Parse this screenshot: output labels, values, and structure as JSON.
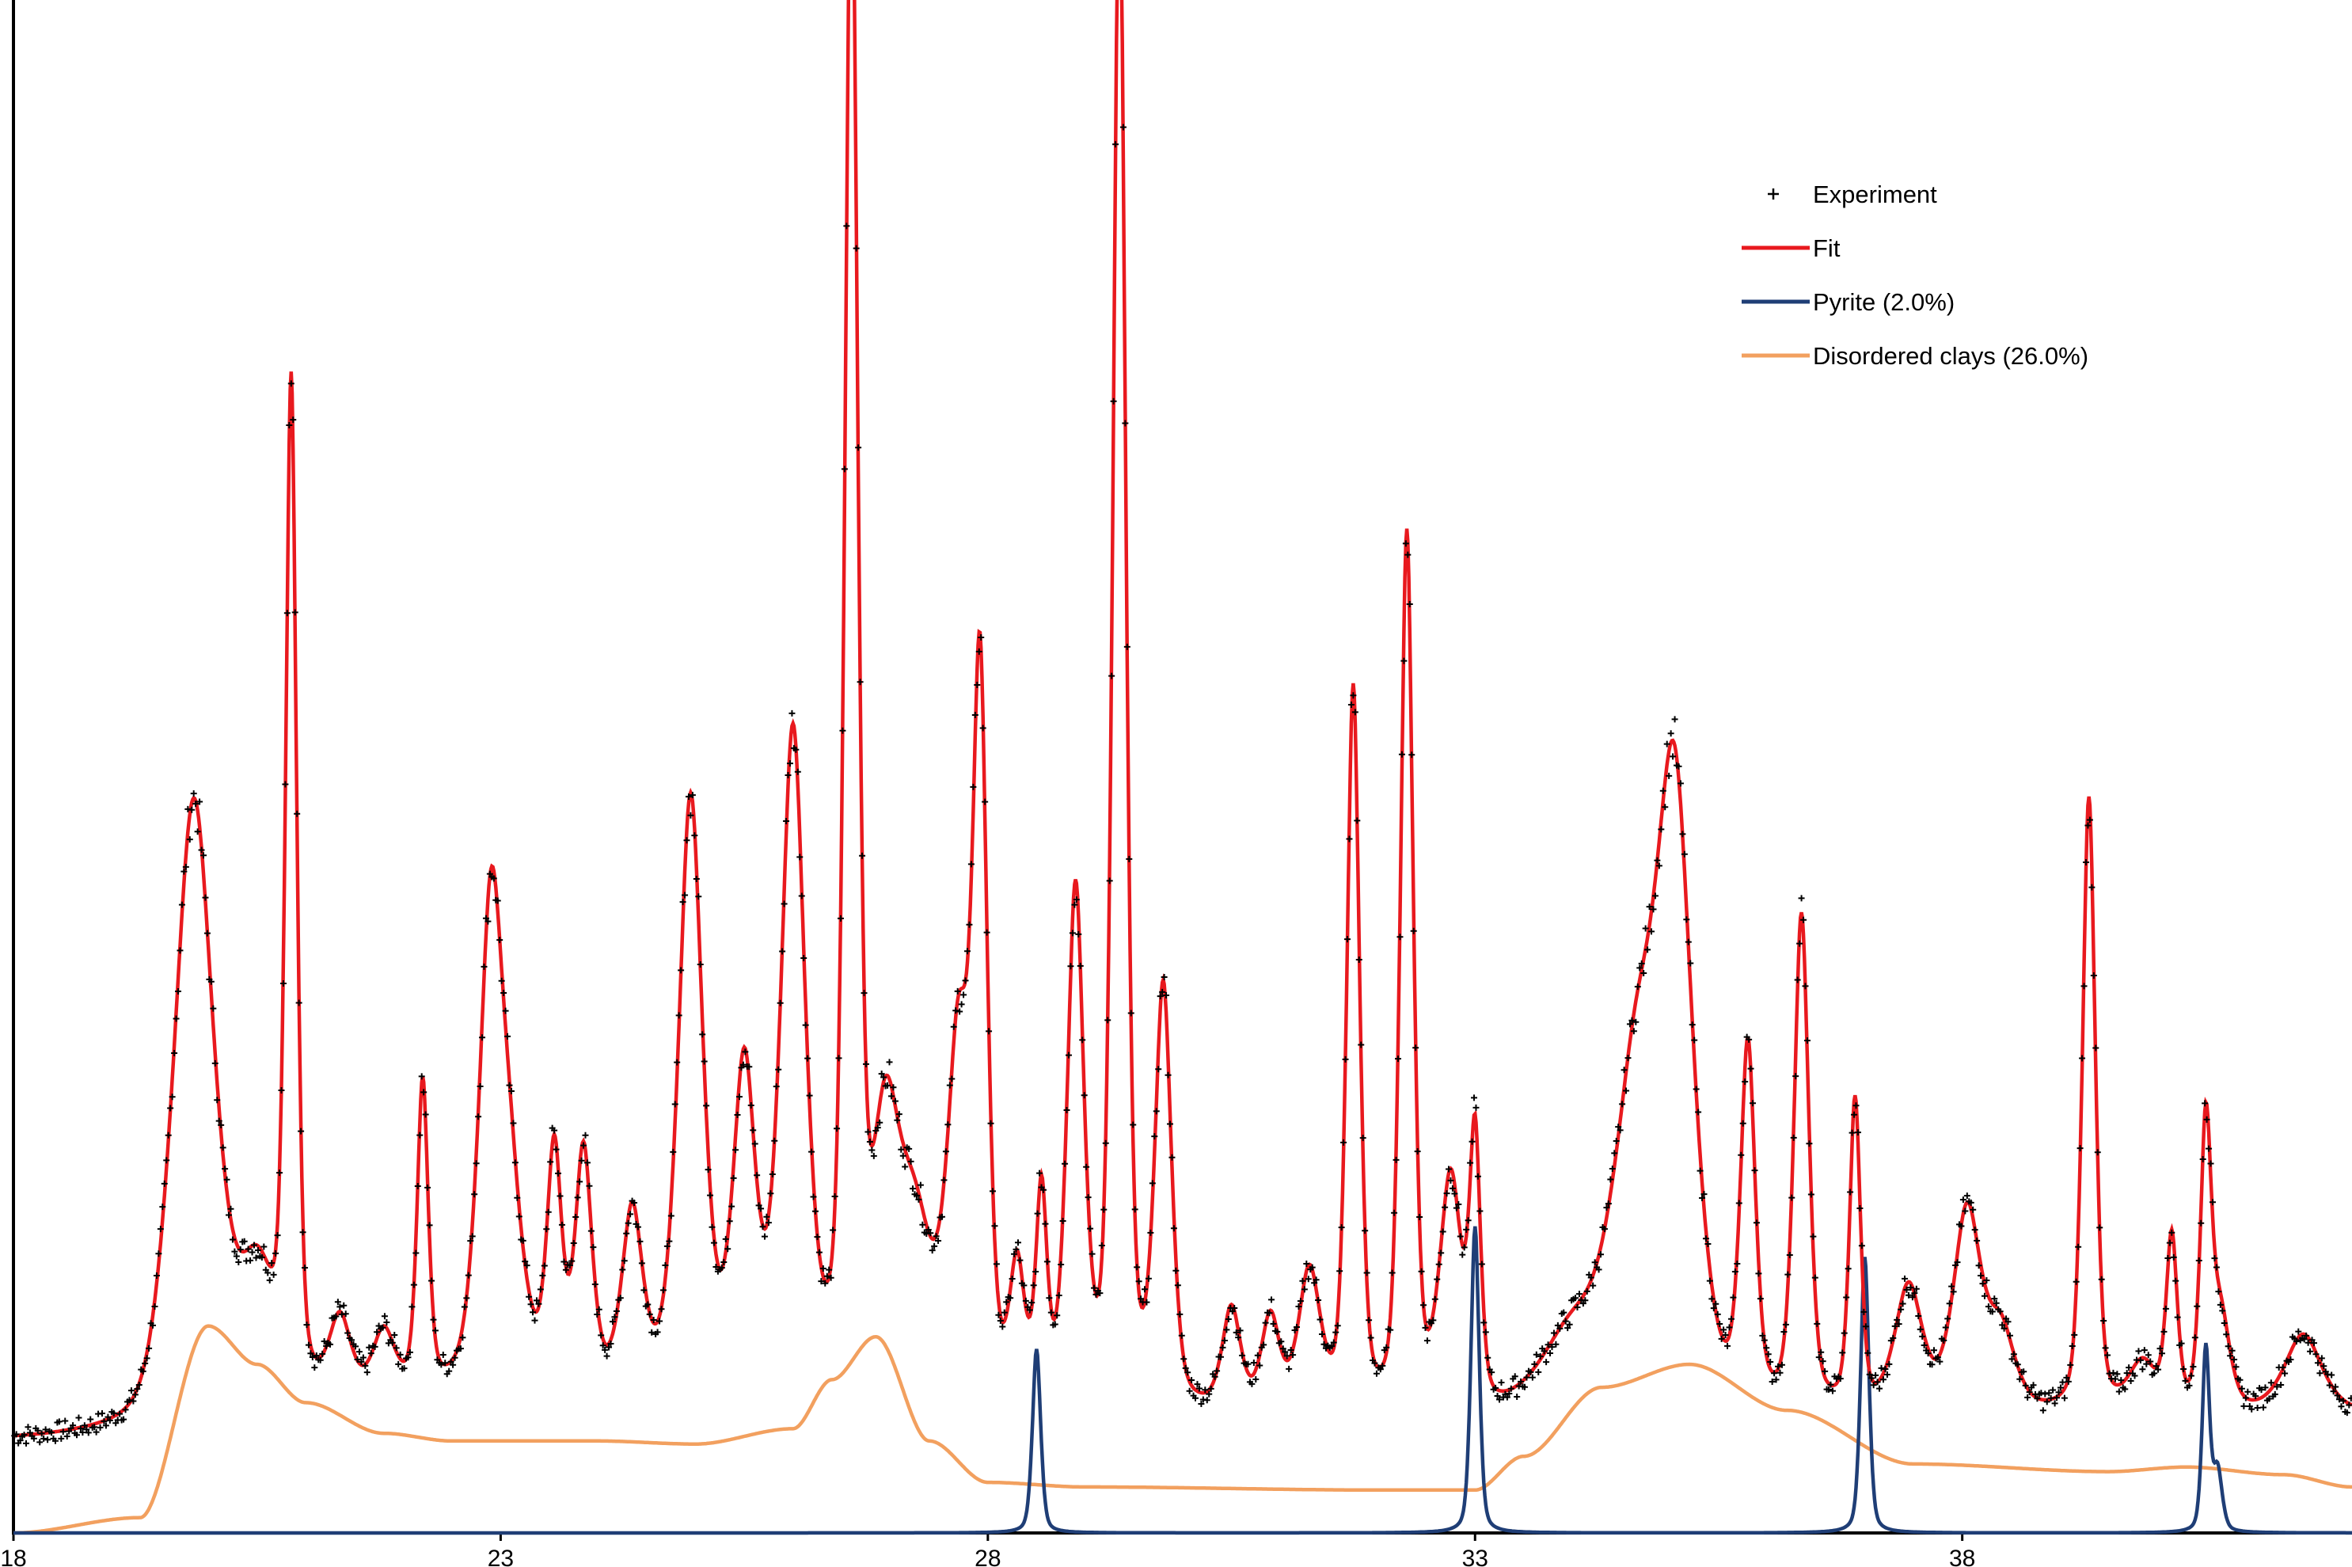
{
  "chart_data": {
    "type": "line",
    "title": "",
    "xlabel": "",
    "ylabel": "",
    "xlim": [
      18,
      42
    ],
    "ylim": [
      0,
      1000
    ],
    "x_ticks": [
      18,
      23,
      28,
      33,
      38
    ],
    "y_axis_labels_shown": false,
    "grid": false,
    "legend_position": "top-right",
    "colors": {
      "experiment": "#000000",
      "fit": "#e8191e",
      "pyrite": "#1f3e76",
      "clays": "#f2a05f"
    },
    "legend": [
      {
        "key": "experiment",
        "label": "Experiment",
        "marker": "plus"
      },
      {
        "key": "fit",
        "label": "Fit",
        "marker": "line"
      },
      {
        "key": "pyrite",
        "label": "Pyrite (2.0%)",
        "marker": "line"
      },
      {
        "key": "clays",
        "label": "Disordered clays (26.0%)",
        "marker": "line"
      }
    ],
    "fit_model": {
      "baseline": [
        [
          18,
          60
        ],
        [
          19.2,
          62
        ],
        [
          20,
          75
        ],
        [
          23,
          88
        ],
        [
          25,
          90
        ],
        [
          27,
          88
        ],
        [
          28,
          78
        ],
        [
          30,
          74
        ],
        [
          32,
          72
        ],
        [
          33,
          70
        ],
        [
          35,
          72
        ],
        [
          38,
          75
        ],
        [
          42,
          78
        ]
      ],
      "peaks": [
        [
          19.85,
          400,
          0.22
        ],
        [
          20.5,
          80,
          0.2
        ],
        [
          20.85,
          650,
          0.06
        ],
        [
          21.35,
          50,
          0.12
        ],
        [
          21.8,
          40,
          0.12
        ],
        [
          22.2,
          200,
          0.06
        ],
        [
          22.9,
          300,
          0.13
        ],
        [
          23.1,
          100,
          0.15
        ],
        [
          23.55,
          150,
          0.08
        ],
        [
          23.85,
          150,
          0.09
        ],
        [
          24.35,
          110,
          0.11
        ],
        [
          24.95,
          380,
          0.13
        ],
        [
          25.5,
          200,
          0.12
        ],
        [
          26.0,
          420,
          0.13
        ],
        [
          26.6,
          1000,
          0.07
        ],
        [
          26.95,
          150,
          0.15
        ],
        [
          27.25,
          100,
          0.2
        ],
        [
          27.7,
          220,
          0.12
        ],
        [
          27.92,
          450,
          0.08
        ],
        [
          28.3,
          80,
          0.08
        ],
        [
          28.55,
          130,
          0.06
        ],
        [
          28.9,
          330,
          0.09
        ],
        [
          29.35,
          1000,
          0.07
        ],
        [
          29.8,
          270,
          0.09
        ],
        [
          30.5,
          65,
          0.1
        ],
        [
          30.9,
          60,
          0.1
        ],
        [
          31.3,
          90,
          0.12
        ],
        [
          31.75,
          470,
          0.07
        ],
        [
          32.3,
          570,
          0.07
        ],
        [
          32.75,
          150,
          0.12
        ],
        [
          33.0,
          170,
          0.06
        ],
        [
          34.0,
          50,
          0.35
        ],
        [
          34.65,
          200,
          0.25
        ],
        [
          35.05,
          380,
          0.2
        ],
        [
          35.8,
          230,
          0.08
        ],
        [
          36.35,
          320,
          0.08
        ],
        [
          36.9,
          200,
          0.06
        ],
        [
          37.45,
          80,
          0.15
        ],
        [
          38.05,
          130,
          0.15
        ],
        [
          38.4,
          50,
          0.15
        ],
        [
          39.3,
          400,
          0.07
        ],
        [
          39.85,
          30,
          0.15
        ],
        [
          40.15,
          110,
          0.06
        ],
        [
          40.5,
          180,
          0.06
        ],
        [
          40.65,
          60,
          0.1
        ],
        [
          41.5,
          50,
          0.2
        ]
      ]
    },
    "pyrite_peaks": [
      [
        28.5,
        120,
        0.045
      ],
      [
        33.0,
        200,
        0.045
      ],
      [
        37.0,
        180,
        0.045
      ],
      [
        40.5,
        120,
        0.04
      ],
      [
        40.62,
        40,
        0.05
      ]
    ],
    "clays_model": {
      "baseline": [
        [
          18,
          0
        ],
        [
          19.3,
          10
        ],
        [
          20,
          135
        ],
        [
          20.5,
          110
        ],
        [
          21,
          85
        ],
        [
          21.8,
          65
        ],
        [
          22.5,
          60
        ],
        [
          24,
          60
        ],
        [
          25,
          58
        ],
        [
          26,
          68
        ],
        [
          26.4,
          100
        ],
        [
          26.85,
          128
        ],
        [
          27.4,
          60
        ],
        [
          28,
          33
        ],
        [
          29,
          30
        ],
        [
          32,
          28
        ],
        [
          33,
          28
        ],
        [
          33.5,
          50
        ],
        [
          34.3,
          95
        ],
        [
          35.2,
          110
        ],
        [
          36.2,
          80
        ],
        [
          37.5,
          45
        ],
        [
          39.5,
          40
        ],
        [
          40.3,
          43
        ],
        [
          41.3,
          38
        ],
        [
          42,
          30
        ]
      ]
    }
  }
}
